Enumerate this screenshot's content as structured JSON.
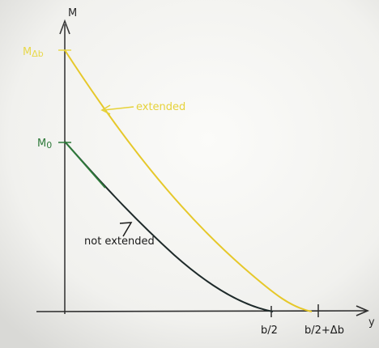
{
  "axes": {
    "vertical": "M",
    "horizontal": "y"
  },
  "vertical_marks": [
    {
      "main": "M",
      "sub": "Δb"
    },
    {
      "main": "M",
      "sub": "0"
    }
  ],
  "horizontal_marks": [
    "b/2",
    "b/2+Δb"
  ],
  "annotations": {
    "extended": "extended",
    "not_extended": "not extended"
  }
}
